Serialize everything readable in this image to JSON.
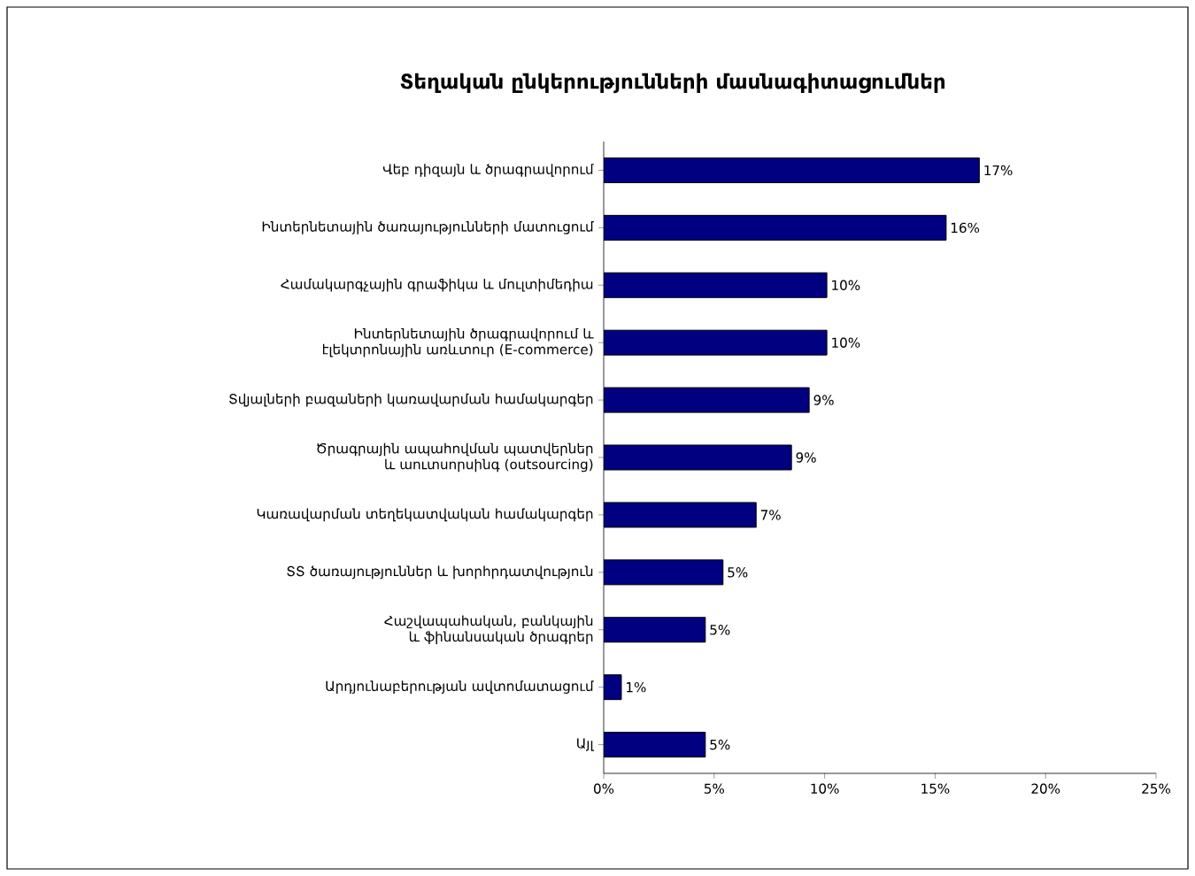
{
  "chart_data": {
    "type": "bar",
    "orientation": "horizontal",
    "title": "Տեղական ընկերությունների մասնագիտացումներ",
    "categories": [
      "Վեբ դիզայն և ծրագրավորում",
      "Ինտերնետային ծառայությունների մատուցում",
      "Համակարգչային գրաֆիկա և մուլտիմեդիա",
      "Ինտերնետային ծրագրավորում և էլեկտրոնային առևտուր (E-commerce)",
      "Տվյալների բազաների կառավարման համակարգեր",
      "Ծրագրային ապահովման պատվերներ և աուտսորսինգ (outsourcing)",
      "Կառավարման տեղեկատվական համակարգեր",
      "ՏՏ ծառայություններ և խորհրդատվություն",
      "Հաշվապահական, բանկային և ֆինանսական ծրագրեր",
      "Արդյունաբերության ավտոմատացում",
      "Այլ"
    ],
    "values": [
      17.0,
      15.5,
      10.1,
      10.1,
      9.3,
      8.5,
      6.9,
      5.4,
      4.6,
      0.8,
      4.6
    ],
    "value_labels": [
      "17%",
      "16%",
      "10%",
      "10%",
      "9%",
      "9%",
      "7%",
      "5%",
      "5%",
      "1%",
      "5%"
    ],
    "color": "#000080",
    "xlim": [
      0,
      25
    ],
    "xticks": [
      {
        "value": 0,
        "label": "0%"
      },
      {
        "value": 5,
        "label": "5%"
      },
      {
        "value": 10,
        "label": "10%"
      },
      {
        "value": 15,
        "label": "15%"
      },
      {
        "value": 20,
        "label": "20%"
      },
      {
        "value": 25,
        "label": "25%"
      }
    ],
    "grid": false
  }
}
